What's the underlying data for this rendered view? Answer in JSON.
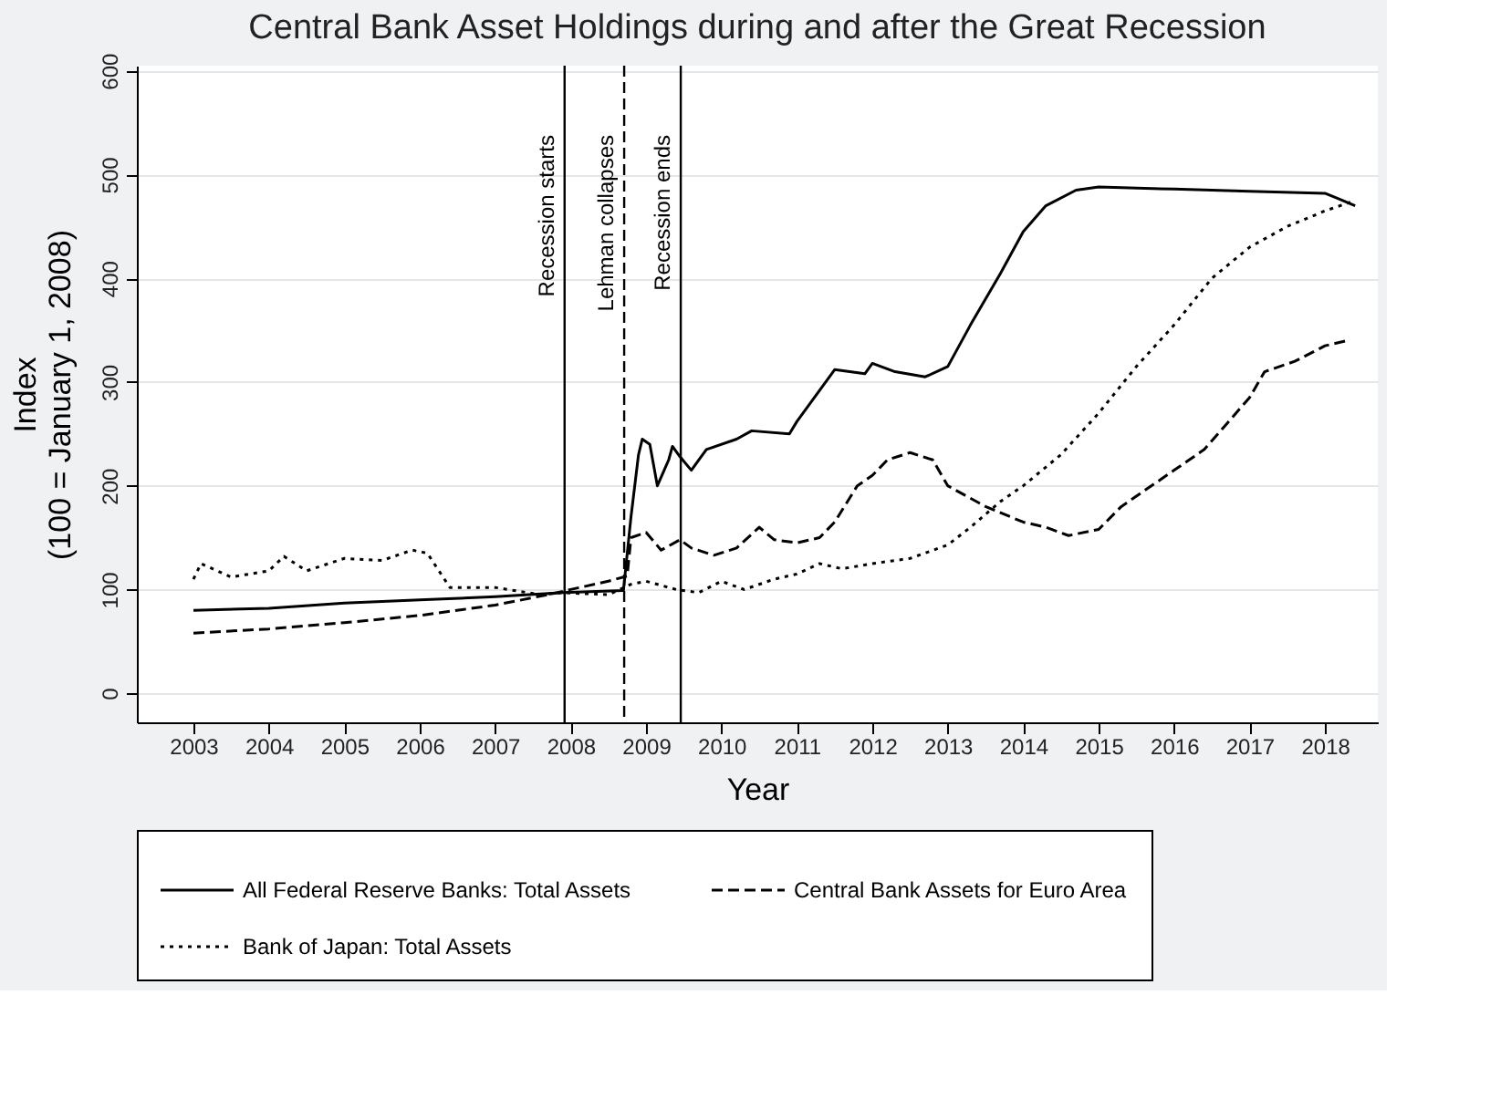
{
  "chart_data": {
    "type": "line",
    "title": "Central Bank Asset Holdings during and after the Great Recession",
    "xlabel": "Year",
    "ylabel": "Index\n(100 = January 1, 2008)",
    "xlim": [
      2002.25,
      2018.7
    ],
    "xticks": [
      2003,
      2004,
      2005,
      2006,
      2007,
      2008,
      2009,
      2010,
      2011,
      2012,
      2013,
      2014,
      2015,
      2016,
      2017,
      2018
    ],
    "ylim": [
      -28,
      605
    ],
    "yticks": [
      0,
      100,
      200,
      300,
      400,
      500,
      600
    ],
    "grid": "y",
    "legend": "bottom",
    "marker": "none",
    "series": [
      {
        "name": "All Federal Reserve Banks: Total Assets",
        "color": "#000000",
        "line_style": "solid",
        "x": [
          2003,
          2004,
          2005,
          2006,
          2007,
          2007.9,
          2008.7,
          2008.8,
          2008.9,
          2008.95,
          2009.05,
          2009.15,
          2009.3,
          2009.35,
          2009.45,
          2009.6,
          2009.8,
          2010.2,
          2010.4,
          2010.9,
          2011.0,
          2011.5,
          2011.9,
          2012.0,
          2012.3,
          2012.7,
          2013.0,
          2013.3,
          2013.7,
          2014.0,
          2014.3,
          2014.7,
          2015.0,
          2016.0,
          2017.0,
          2018.0,
          2018.2,
          2018.4
        ],
        "values": [
          80,
          82,
          87,
          90,
          93,
          97,
          99,
          170,
          230,
          245,
          240,
          200,
          225,
          238,
          228,
          215,
          235,
          245,
          253,
          250,
          262,
          312,
          308,
          318,
          310,
          305,
          315,
          355,
          405,
          445,
          470,
          485,
          488,
          486,
          484,
          482,
          476,
          470
        ]
      },
      {
        "name": "Central Bank Assets for Euro Area",
        "color": "#000000",
        "line_style": "dashed",
        "x": [
          2003,
          2004,
          2005,
          2006,
          2007,
          2007.7,
          2008.0,
          2008.5,
          2008.75,
          2008.8,
          2009.0,
          2009.2,
          2009.45,
          2009.6,
          2009.9,
          2010.2,
          2010.5,
          2010.7,
          2011.0,
          2011.3,
          2011.5,
          2011.8,
          2012.0,
          2012.2,
          2012.5,
          2012.8,
          2013.0,
          2013.5,
          2014.0,
          2014.3,
          2014.6,
          2015.0,
          2015.3,
          2016.0,
          2016.4,
          2017.0,
          2017.2,
          2017.6,
          2018.0,
          2018.3
        ],
        "values": [
          58,
          62,
          68,
          75,
          85,
          95,
          100,
          108,
          113,
          150,
          155,
          138,
          148,
          140,
          133,
          140,
          160,
          148,
          145,
          150,
          165,
          200,
          210,
          225,
          232,
          225,
          200,
          180,
          165,
          160,
          152,
          158,
          180,
          215,
          235,
          285,
          310,
          320,
          335,
          340
        ]
      },
      {
        "name": "Bank of Japan: Total Assets",
        "color": "#000000",
        "line_style": "dotted",
        "x": [
          2003,
          2003.1,
          2003.5,
          2004,
          2004.2,
          2004.5,
          2005,
          2005.5,
          2005.9,
          2006.1,
          2006.4,
          2007,
          2007.6,
          2007.9,
          2008.5,
          2008.8,
          2009.0,
          2009.4,
          2009.7,
          2010.0,
          2010.3,
          2010.7,
          2011.0,
          2011.3,
          2011.6,
          2012.0,
          2012.5,
          2013.0,
          2013.3,
          2013.7,
          2014.0,
          2014.5,
          2015.0,
          2015.5,
          2016.0,
          2016.5,
          2017.0,
          2017.5,
          2018.0,
          2018.4
        ],
        "values": [
          110,
          125,
          112,
          118,
          132,
          118,
          130,
          128,
          138,
          135,
          102,
          102,
          95,
          97,
          95,
          105,
          108,
          100,
          97,
          108,
          100,
          110,
          115,
          125,
          120,
          125,
          130,
          143,
          160,
          185,
          200,
          230,
          270,
          315,
          355,
          400,
          430,
          450,
          465,
          475
        ]
      }
    ],
    "ref_lines": [
      {
        "axis": "x",
        "value": 2007.92,
        "label": "Recession starts",
        "line_style": "solid",
        "color": "#000000"
      },
      {
        "axis": "x",
        "value": 2008.71,
        "label": "Lehman collapses",
        "line_style": "dashed",
        "color": "#000000"
      },
      {
        "axis": "x",
        "value": 2009.46,
        "label": "Recession ends",
        "line_style": "solid",
        "color": "#000000"
      }
    ]
  }
}
